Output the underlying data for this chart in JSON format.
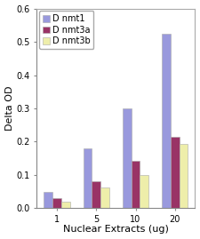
{
  "categories": [
    "1",
    "5",
    "10",
    "20"
  ],
  "series": {
    "Dnmt1": [
      0.05,
      0.18,
      0.3,
      0.525
    ],
    "Dnmt3a": [
      0.03,
      0.082,
      0.143,
      0.215
    ],
    "Dnmt3b": [
      0.02,
      0.063,
      0.1,
      0.192
    ]
  },
  "colors": {
    "Dnmt1": "#9999dd",
    "Dnmt3a": "#993366",
    "Dnmt3b": "#eeeeaa"
  },
  "legend_labels": [
    "D nmt1",
    "D nmt3a",
    "D nmt3b"
  ],
  "ylabel": "Delta OD",
  "xlabel": "Nuclear Extracts (ug)",
  "ylim": [
    0,
    0.6
  ],
  "yticks": [
    0.0,
    0.1,
    0.2,
    0.3,
    0.4,
    0.5,
    0.6
  ],
  "background_color": "#ffffff",
  "plot_bg_color": "#ffffff",
  "bar_width": 0.22,
  "axis_fontsize": 8,
  "tick_fontsize": 7,
  "legend_fontsize": 7
}
